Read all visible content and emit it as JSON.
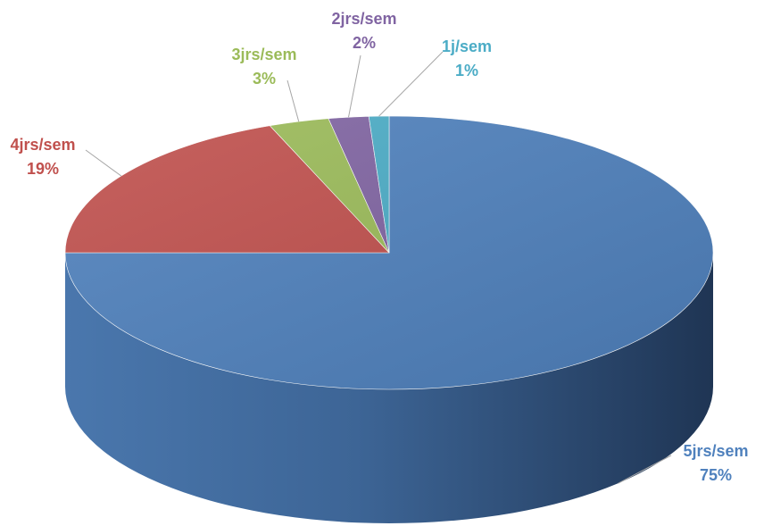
{
  "chart_data": {
    "type": "pie",
    "style": "3d",
    "title": "",
    "categories": [
      "5jrs/sem",
      "4jrs/sem",
      "3jrs/sem",
      "2jrs/sem",
      "1j/sem"
    ],
    "values": [
      75,
      19,
      3,
      2,
      1
    ],
    "value_labels": [
      "75%",
      "19%",
      "3%",
      "2%",
      "1%"
    ],
    "colors": [
      "#4f81bd",
      "#c0504d",
      "#9bbb59",
      "#8064a2",
      "#4bacc6"
    ],
    "label_colors": [
      "#4f81bd",
      "#c0504d",
      "#9bbb59",
      "#8064a2",
      "#4bacc6"
    ],
    "legend": "none"
  }
}
